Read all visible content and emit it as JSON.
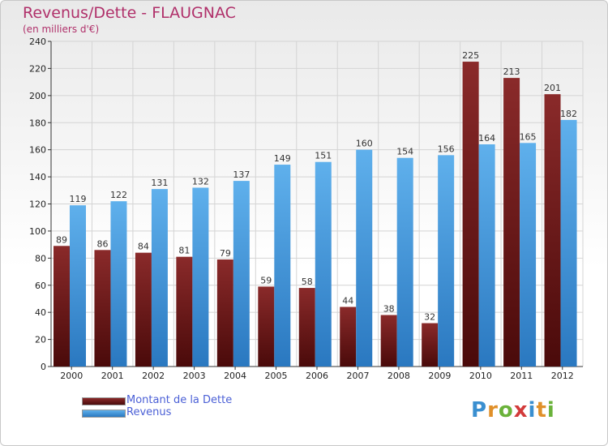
{
  "header": {
    "title": "Revenus/Dette - FLAUGNAC",
    "subtitle": "(en milliers d'€)"
  },
  "legend": {
    "items": [
      {
        "label": "Montant de la Dette",
        "color": "#6e1a1a"
      },
      {
        "label": "Revenus",
        "color": "#4a9fe0"
      }
    ]
  },
  "logo": {
    "text": "Proxiti"
  },
  "colors": {
    "debt_top": "#8a2a2a",
    "debt_bottom": "#4a0a0a",
    "revenue_top": "#5fb0ec",
    "revenue_bottom": "#2a78c0"
  },
  "chart_data": {
    "type": "bar",
    "title": "Revenus/Dette - FLAUGNAC",
    "subtitle": "(en milliers d'€)",
    "xlabel": "",
    "ylabel": "",
    "ylim": [
      0,
      240
    ],
    "yticks": [
      0,
      20,
      40,
      60,
      80,
      100,
      120,
      140,
      160,
      180,
      200,
      220,
      240
    ],
    "grid": true,
    "legend_position": "bottom-left",
    "categories": [
      "2000",
      "2001",
      "2002",
      "2003",
      "2004",
      "2005",
      "2006",
      "2007",
      "2008",
      "2009",
      "2010",
      "2011",
      "2012"
    ],
    "series": [
      {
        "name": "Montant de la Dette",
        "values": [
          89,
          86,
          84,
          81,
          79,
          59,
          58,
          44,
          38,
          32,
          225,
          213,
          201
        ]
      },
      {
        "name": "Revenus",
        "values": [
          119,
          122,
          131,
          132,
          137,
          149,
          151,
          160,
          154,
          156,
          164,
          165,
          182
        ]
      }
    ]
  }
}
